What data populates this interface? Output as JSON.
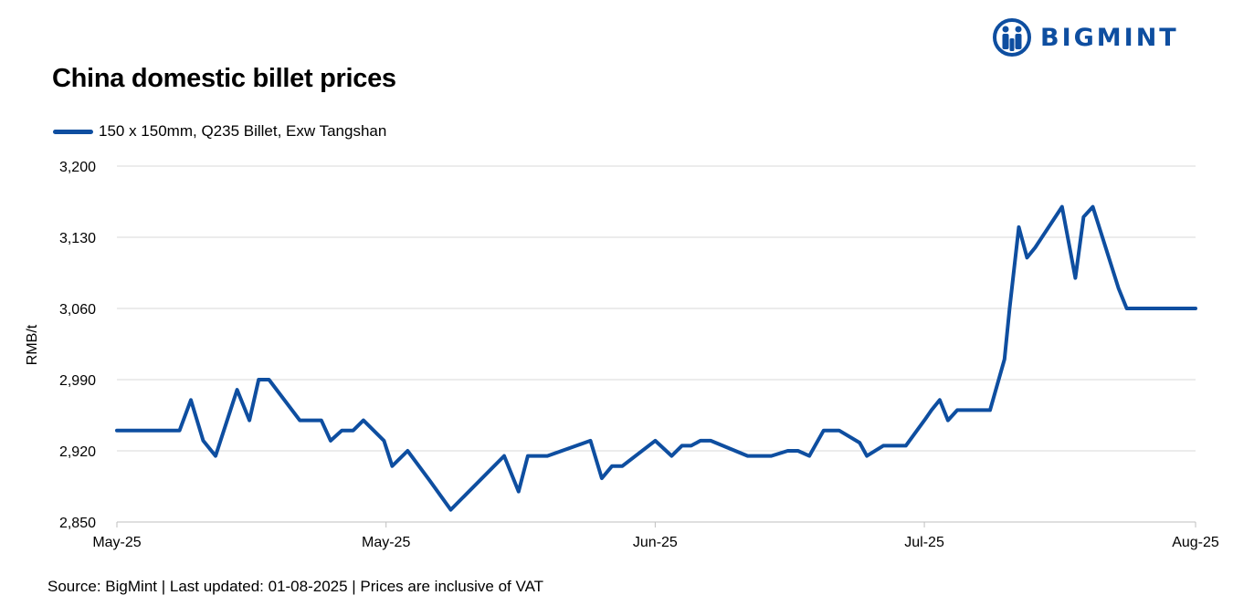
{
  "brand": {
    "name": "BIGMINT",
    "color": "#0e4ea0"
  },
  "footer": {
    "source": "Source: BigMint | Last updated: 01-08-2025 | Prices are inclusive of VAT"
  },
  "chart_data": {
    "type": "line",
    "title": "China domestic billet prices",
    "ylabel": "RMB/t",
    "xlabel": "",
    "ylim": [
      2850,
      3200
    ],
    "yticks": [
      2850,
      2920,
      2990,
      3060,
      3130,
      3200
    ],
    "ytick_labels": [
      "2,850",
      "2,920",
      "2,990",
      "3,060",
      "3,130",
      "3,200"
    ],
    "xlim": [
      0,
      105
    ],
    "xticks": [
      0,
      26.2,
      52.4,
      78.6,
      105
    ],
    "xtick_labels": [
      "May-25",
      "May-25",
      "Jun-25",
      "Jul-25",
      "Aug-25"
    ],
    "grid": "horizontal",
    "legend_position": "top-left",
    "series": [
      {
        "name": "150 x 150mm, Q235 Billet, Exw Tangshan",
        "color": "#0e4ea0",
        "x": [
          0,
          6.1,
          7.2,
          8.4,
          9.6,
          11.7,
          12.9,
          13.8,
          14.8,
          17.8,
          19.9,
          20.8,
          21.9,
          23.0,
          24.0,
          26.0,
          26.8,
          28.3,
          30.5,
          32.5,
          37.7,
          39.1,
          40.0,
          41.9,
          46.1,
          47.2,
          48.2,
          49.2,
          52.4,
          54.0,
          55.0,
          55.9,
          56.8,
          57.8,
          61.4,
          62.3,
          63.7,
          65.3,
          66.3,
          67.4,
          68.8,
          70.3,
          72.3,
          73.0,
          74.6,
          76.8,
          78.6,
          79.3,
          80.1,
          80.9,
          81.8,
          85.0,
          86.4,
          86.9,
          87.8,
          88.6,
          89.4,
          92.0,
          93.3,
          94.1,
          95.0,
          97.5,
          98.3,
          99.3,
          100.0,
          100.7,
          101.4,
          105.0
        ],
        "values": [
          2940,
          2940,
          2970,
          2930,
          2915,
          2980,
          2950,
          2990,
          2990,
          2950,
          2950,
          2930,
          2940,
          2940,
          2950,
          2930,
          2905,
          2920,
          2890,
          2862,
          2915,
          2880,
          2915,
          2915,
          2930,
          2893,
          2905,
          2905,
          2930,
          2915,
          2925,
          2925,
          2930,
          2930,
          2915,
          2915,
          2915,
          2920,
          2920,
          2915,
          2940,
          2940,
          2928,
          2915,
          2925,
          2925,
          2950,
          2960,
          2970,
          2950,
          2960,
          2960,
          3010,
          3060,
          3140,
          3110,
          3120,
          3160,
          3090,
          3150,
          3160,
          3080,
          3060,
          3060,
          3060,
          3060,
          3060,
          3060
        ]
      }
    ]
  }
}
